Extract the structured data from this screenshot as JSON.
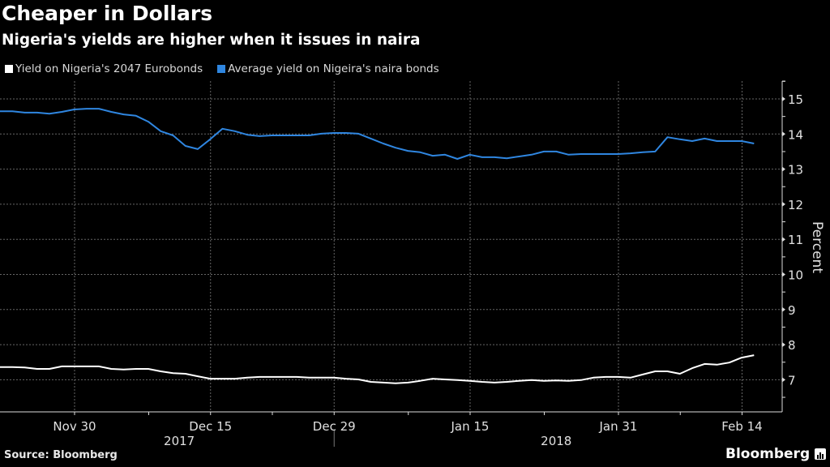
{
  "chart_data": {
    "type": "line",
    "title": "Cheaper in Dollars",
    "subtitle": "Nigeria's yields are higher when it issues in naira",
    "xlabel": "",
    "ylabel": "Percent",
    "ylim": [
      6.1,
      15.4
    ],
    "yticks": [
      7,
      8,
      9,
      10,
      11,
      12,
      13,
      14,
      15
    ],
    "grid": true,
    "legend_position": "top-left",
    "x_tick_labels": [
      "Nov 30",
      "Dec 15",
      "Dec 29",
      "Jan 15",
      "Jan 31",
      "Feb 14"
    ],
    "x_tick_index": [
      6,
      17,
      27,
      38,
      50,
      60
    ],
    "x_minor_index": [
      12,
      22,
      33,
      44,
      55
    ],
    "year_labels": [
      {
        "label": "2017",
        "center_index": 14.5
      },
      {
        "label": "2018",
        "center_index": 45
      }
    ],
    "year_separator_index": 27,
    "x_count": 63,
    "series": [
      {
        "name": "Yield on Nigeria's 2047 Eurobonds",
        "color": "#ffffff",
        "values": [
          7.36,
          7.36,
          7.35,
          7.31,
          7.31,
          7.38,
          7.38,
          7.38,
          7.38,
          7.31,
          7.29,
          7.31,
          7.31,
          7.24,
          7.19,
          7.17,
          7.1,
          7.03,
          7.03,
          7.03,
          7.06,
          7.08,
          7.08,
          7.08,
          7.08,
          7.06,
          7.06,
          7.06,
          7.03,
          7.01,
          6.94,
          6.92,
          6.9,
          6.92,
          6.97,
          7.03,
          7.01,
          6.99,
          6.97,
          6.94,
          6.92,
          6.94,
          6.97,
          6.99,
          6.97,
          6.98,
          6.97,
          6.99,
          7.06,
          7.08,
          7.08,
          7.06,
          7.15,
          7.24,
          7.24,
          7.17,
          7.33,
          7.45,
          7.43,
          7.49,
          7.63,
          7.7
        ]
      },
      {
        "name": "Average yield on Nigeira's naira bonds",
        "color": "#2f86e0",
        "values": [
          14.65,
          14.65,
          14.61,
          14.61,
          14.58,
          14.63,
          14.7,
          14.72,
          14.72,
          14.63,
          14.56,
          14.52,
          14.35,
          14.08,
          13.96,
          13.66,
          13.57,
          13.85,
          14.15,
          14.08,
          13.98,
          13.94,
          13.96,
          13.96,
          13.96,
          13.96,
          14.01,
          14.03,
          14.03,
          14.01,
          13.87,
          13.73,
          13.61,
          13.52,
          13.48,
          13.38,
          13.41,
          13.29,
          13.41,
          13.34,
          13.34,
          13.31,
          13.36,
          13.41,
          13.5,
          13.5,
          13.41,
          13.43,
          13.43,
          13.43,
          13.43,
          13.45,
          13.48,
          13.5,
          13.91,
          13.85,
          13.8,
          13.87,
          13.8,
          13.8,
          13.8,
          13.73
        ]
      }
    ]
  },
  "source": "Source: Bloomberg",
  "brand": "Bloomberg"
}
